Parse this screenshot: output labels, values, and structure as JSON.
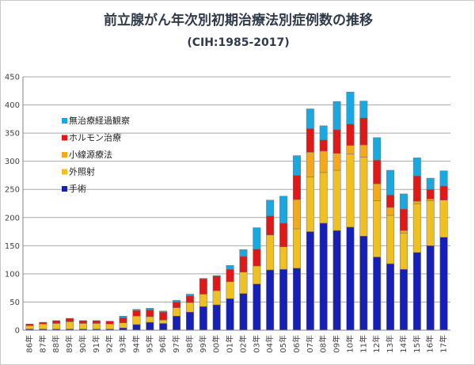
{
  "colors": {
    "手術": "#1620b8",
    "外照射": "#f0c020",
    "小線源療法": "#f5a81c",
    "ホルモン治療": "#e01818",
    "無治療経過観察": "#1aa8e0",
    "bar_edge": "#707070",
    "grid": "#a8a8a8"
  },
  "chart_data": {
    "type": "bar",
    "stacked": true,
    "title": "前立腺がん年次別初期治療法別症例数の推移",
    "subtitle": "(CIH:1985-2017)",
    "xlabel": "",
    "ylabel": "",
    "ylim": [
      0,
      450
    ],
    "yticks": [
      0,
      50,
      100,
      150,
      200,
      250,
      300,
      350,
      400,
      450
    ],
    "grid": true,
    "legend_position": "left",
    "legend_order": [
      "無治療経過観察",
      "ホルモン治療",
      "小線源療法",
      "外照射",
      "手術"
    ],
    "categories": [
      "86年",
      "87年",
      "88年",
      "89年",
      "90年",
      "91年",
      "92年",
      "93年",
      "94年",
      "95年",
      "96年",
      "97年",
      "98年",
      "99年",
      "00年",
      "01年",
      "02年",
      "03年",
      "04年",
      "05年",
      "06年",
      "07年",
      "08年",
      "09年",
      "10年",
      "11年",
      "12年",
      "13年",
      "14年",
      "15年",
      "16年",
      "17年"
    ],
    "series": [
      {
        "name": "手術",
        "values": [
          2,
          2,
          2,
          2,
          2,
          2,
          2,
          4,
          10,
          14,
          12,
          25,
          32,
          42,
          45,
          56,
          65,
          82,
          107,
          108,
          110,
          175,
          190,
          177,
          183,
          167,
          130,
          118,
          108,
          138,
          150,
          165
        ]
      },
      {
        "name": "外照射",
        "values": [
          6,
          9,
          10,
          13,
          10,
          10,
          9,
          9,
          15,
          10,
          6,
          15,
          17,
          22,
          25,
          30,
          38,
          32,
          62,
          40,
          70,
          97,
          90,
          107,
          130,
          140,
          100,
          86,
          64,
          86,
          80,
          66
        ]
      },
      {
        "name": "小線源療法",
        "values": [
          0,
          0,
          0,
          0,
          0,
          0,
          0,
          0,
          0,
          0,
          0,
          0,
          0,
          0,
          0,
          0,
          0,
          0,
          0,
          0,
          52,
          44,
          38,
          30,
          15,
          22,
          30,
          14,
          5,
          5,
          3,
          0
        ]
      },
      {
        "name": "ホルモン治療",
        "values": [
          3,
          3,
          5,
          6,
          5,
          5,
          5,
          9,
          10,
          12,
          14,
          10,
          12,
          27,
          26,
          22,
          28,
          30,
          34,
          42,
          43,
          42,
          20,
          42,
          38,
          48,
          42,
          22,
          38,
          45,
          17,
          25
        ]
      },
      {
        "name": "無治療経過観察",
        "values": [
          0,
          0,
          0,
          0,
          0,
          0,
          0,
          3,
          2,
          3,
          2,
          3,
          3,
          1,
          1,
          7,
          12,
          38,
          28,
          48,
          35,
          35,
          25,
          50,
          57,
          30,
          40,
          44,
          27,
          32,
          20,
          27
        ]
      }
    ]
  },
  "legend": {
    "items": [
      {
        "label": "無治療経過観察",
        "key": "無治療経過観察"
      },
      {
        "label": "ホルモン治療",
        "key": "ホルモン治療"
      },
      {
        "label": "小線源療法",
        "key": "小線源療法"
      },
      {
        "label": "外照射",
        "key": "外照射"
      },
      {
        "label": "手術",
        "key": "手術"
      }
    ]
  }
}
